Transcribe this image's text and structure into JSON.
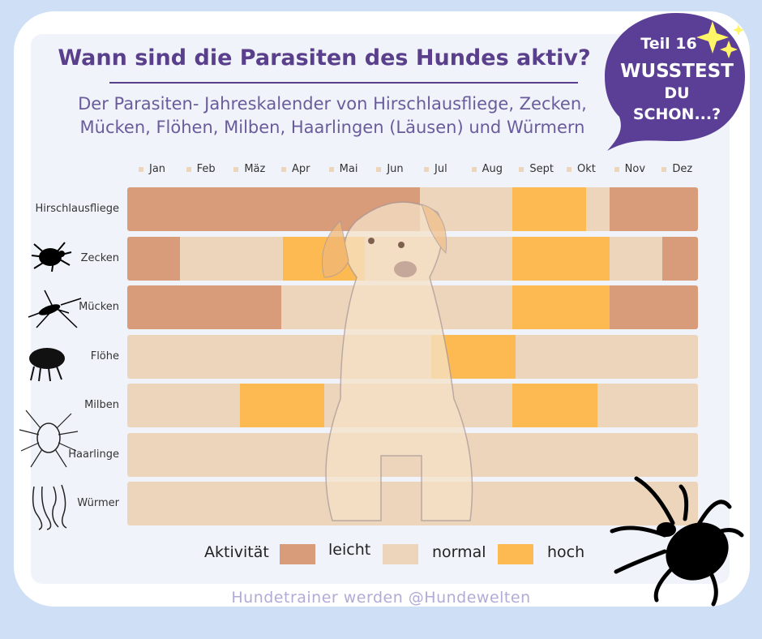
{
  "header": {
    "title": "Wann sind die Parasiten des Hundes aktiv?",
    "subtitle_line1": "Der Parasiten- Jahreskalender von Hirschlausfliege, Zecken,",
    "subtitle_line2": "Mücken, Flöhen, Milben, Haarlingen (Läusen) und Würmern"
  },
  "badge": {
    "part": "Teil 16",
    "line1": "WUSSTEST",
    "line2": "DU",
    "line3": "SCHON...?",
    "color": "#5b3f96"
  },
  "footer": "Hundetrainer werden @Hundewelten",
  "chart_data": {
    "type": "table",
    "title": "Wann sind die Parasiten des Hundes aktiv?",
    "months": [
      "Jan",
      "Feb",
      "Mäz",
      "Apr",
      "Mai",
      "Jun",
      "Jul",
      "Aug",
      "Sept",
      "Okt",
      "Nov",
      "Dez"
    ],
    "legend": {
      "title": "Aktivität",
      "levels": [
        {
          "key": "leicht",
          "label": "leicht",
          "color": "#d89c7a"
        },
        {
          "key": "normal",
          "label": "normal",
          "color": "#edd5bb"
        },
        {
          "key": "hoch",
          "label": "hoch",
          "color": "#fdba53"
        }
      ]
    },
    "unit": "segments given as [start_month, end_month, level] on a 0–12 month scale",
    "rows": [
      {
        "name": "Hirschlausfliege",
        "icon": "",
        "segments": [
          [
            0,
            6.15,
            "leicht"
          ],
          [
            6.15,
            8.1,
            "normal"
          ],
          [
            8.1,
            9.65,
            "hoch"
          ],
          [
            9.65,
            10.15,
            "normal"
          ],
          [
            10.15,
            12,
            "leicht"
          ]
        ]
      },
      {
        "name": "Zecken",
        "icon": "tick-icon",
        "segments": [
          [
            0,
            1.1,
            "leicht"
          ],
          [
            1.1,
            3.27,
            "normal"
          ],
          [
            3.27,
            5.0,
            "hoch"
          ],
          [
            5.0,
            8.1,
            "normal"
          ],
          [
            8.1,
            10.15,
            "hoch"
          ],
          [
            10.15,
            11.25,
            "normal"
          ],
          [
            11.25,
            12,
            "leicht"
          ]
        ]
      },
      {
        "name": "Mücken",
        "icon": "mosquito-icon",
        "segments": [
          [
            0,
            3.24,
            "leicht"
          ],
          [
            3.24,
            8.1,
            "normal"
          ],
          [
            8.1,
            10.15,
            "hoch"
          ],
          [
            10.15,
            12,
            "leicht"
          ]
        ]
      },
      {
        "name": "Flöhe",
        "icon": "flea-icon",
        "segments": [
          [
            0,
            6.4,
            "normal"
          ],
          [
            6.4,
            8.16,
            "hoch"
          ],
          [
            8.16,
            12,
            "normal"
          ]
        ]
      },
      {
        "name": "Milben",
        "icon": "mite-icon",
        "segments": [
          [
            0,
            2.37,
            "normal"
          ],
          [
            2.37,
            4.14,
            "hoch"
          ],
          [
            4.14,
            8.1,
            "normal"
          ],
          [
            8.1,
            9.89,
            "hoch"
          ],
          [
            9.89,
            12,
            "normal"
          ]
        ]
      },
      {
        "name": "Haarlinge",
        "icon": "",
        "segments": [
          [
            0,
            12,
            "normal"
          ]
        ]
      },
      {
        "name": "Würmer",
        "icon": "worm-icon",
        "segments": [
          [
            0,
            12,
            "normal"
          ]
        ]
      }
    ]
  }
}
